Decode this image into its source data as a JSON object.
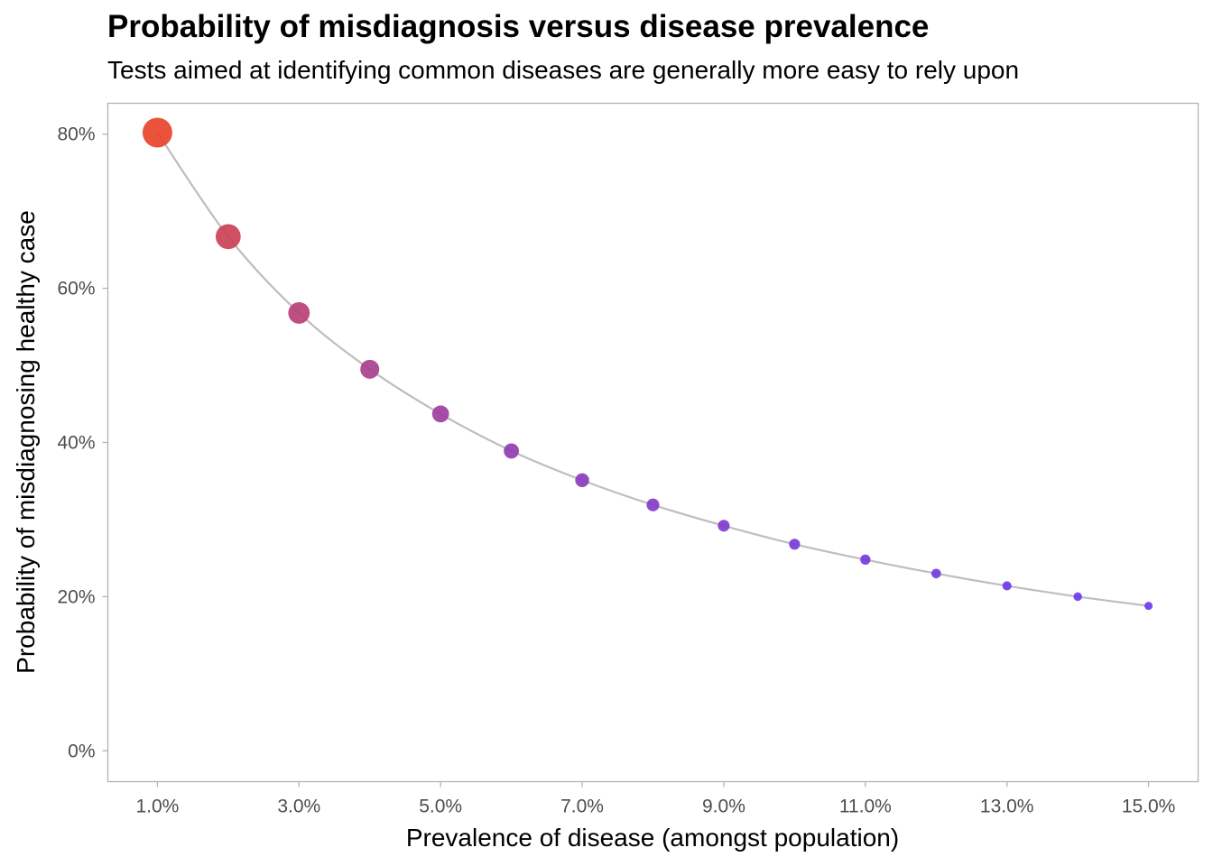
{
  "chart_data": {
    "type": "scatter",
    "title": "Probability of misdiagnosis versus disease prevalence",
    "subtitle": "Tests aimed at identifying common diseases are generally more easy to rely upon",
    "xlabel": "Prevalence of disease (amongst population)",
    "ylabel": "Probability of misdiagnosing healthy case",
    "x_ticks": [
      "1.0%",
      "3.0%",
      "5.0%",
      "7.0%",
      "9.0%",
      "11.0%",
      "13.0%",
      "15.0%"
    ],
    "x_tick_values": [
      1,
      3,
      5,
      7,
      9,
      11,
      13,
      15
    ],
    "y_ticks": [
      "0%",
      "20%",
      "40%",
      "60%",
      "80%"
    ],
    "y_tick_values": [
      0,
      20,
      40,
      60,
      80
    ],
    "xlim": [
      0.3,
      15.7
    ],
    "ylim": [
      -4,
      84
    ],
    "grid": false,
    "line_color": "#bebebe",
    "color_low": "#e8432b",
    "color_high": "#6a3af0",
    "series": [
      {
        "name": "Probability of misdiagnosis",
        "x": [
          1,
          2,
          3,
          4,
          5,
          6,
          7,
          8,
          9,
          10,
          11,
          12,
          13,
          14,
          15
        ],
        "y": [
          80.2,
          66.7,
          56.8,
          49.5,
          43.7,
          38.9,
          35.1,
          31.9,
          29.2,
          26.8,
          24.8,
          23.0,
          21.4,
          20.0,
          18.8
        ]
      }
    ]
  }
}
